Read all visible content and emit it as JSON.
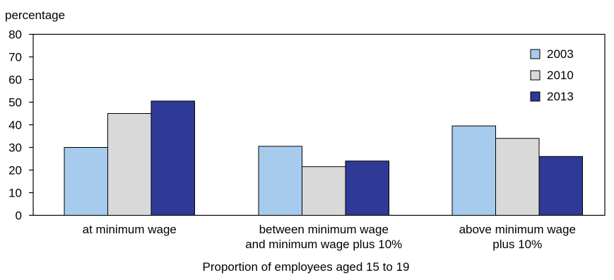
{
  "chart_data": {
    "type": "bar",
    "ylabel": "percentage",
    "xlabel": "Proportion of employees aged 15 to 19",
    "categories": [
      [
        "at minimum wage"
      ],
      [
        "between minimum wage",
        "and minimum wage plus 10%"
      ],
      [
        "above minimum wage",
        "plus 10%"
      ]
    ],
    "series": [
      {
        "name": "2003",
        "color": "#a6cbec",
        "values": [
          30,
          30.5,
          39.5
        ]
      },
      {
        "name": "2010",
        "color": "#d9d9d9",
        "values": [
          45,
          21.5,
          34
        ]
      },
      {
        "name": "2013",
        "color": "#2e3a96",
        "values": [
          50.5,
          24,
          26
        ]
      }
    ],
    "ylim": [
      0,
      80
    ],
    "yticks": [
      0,
      10,
      20,
      30,
      40,
      50,
      60,
      70,
      80
    ],
    "grid": false,
    "legend_position": "top-right"
  }
}
